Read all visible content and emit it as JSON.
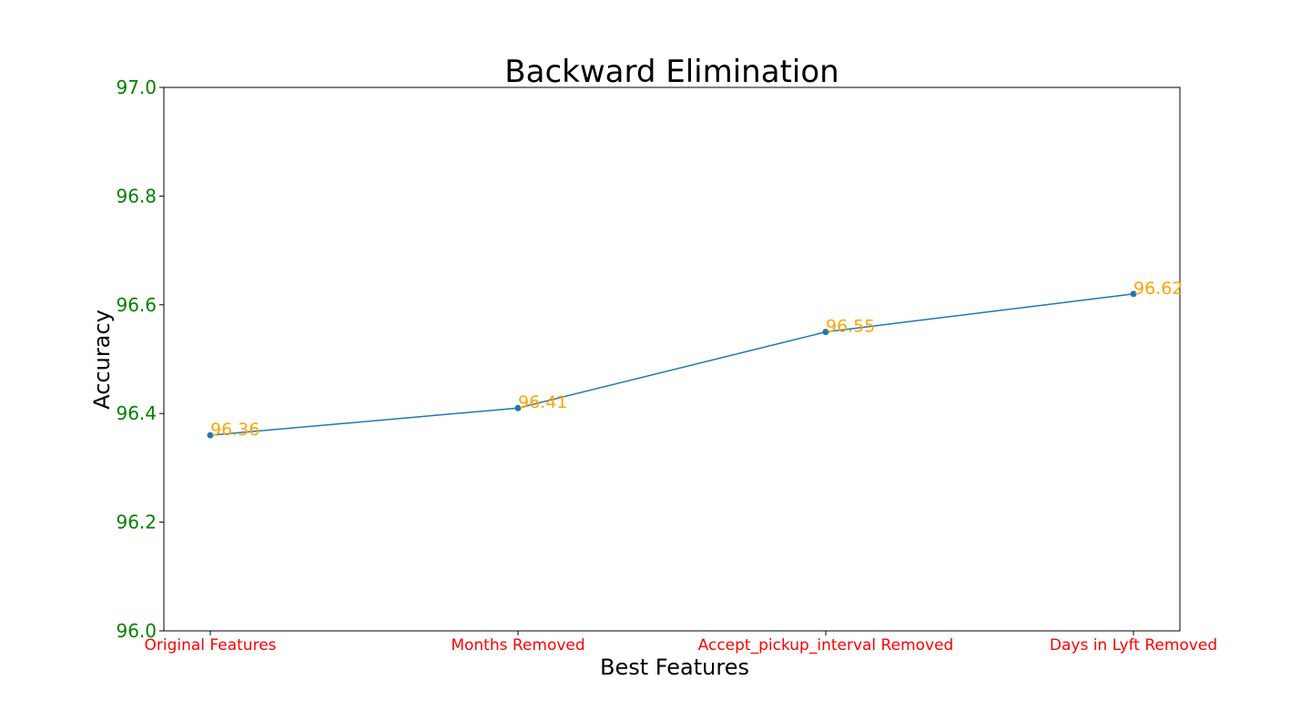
{
  "chart_data": {
    "type": "line",
    "title": "Backward Elimination",
    "xlabel": "Best Features",
    "ylabel": "Accuracy",
    "categories": [
      "Original Features",
      "Months Removed",
      "Accept_pickup_interval Removed",
      "Days in Lyft Removed"
    ],
    "values": [
      96.36,
      96.41,
      96.55,
      96.62
    ],
    "data_labels": [
      "96.36",
      "96.41",
      "96.55",
      "96.62"
    ],
    "ylim": [
      96.0,
      97.0
    ],
    "yticks": [
      96.0,
      96.2,
      96.4,
      96.6,
      96.8,
      97.0
    ],
    "ytick_labels": [
      "96.0",
      "96.2",
      "96.4",
      "96.6",
      "96.8",
      "97.0"
    ],
    "grid": false,
    "legend": "none",
    "colors": {
      "line": "#1f77b4",
      "data_label": "#ffa500",
      "ytick_label": "#008000",
      "xtick_label": "#ff0000",
      "axes": "#000000"
    }
  }
}
